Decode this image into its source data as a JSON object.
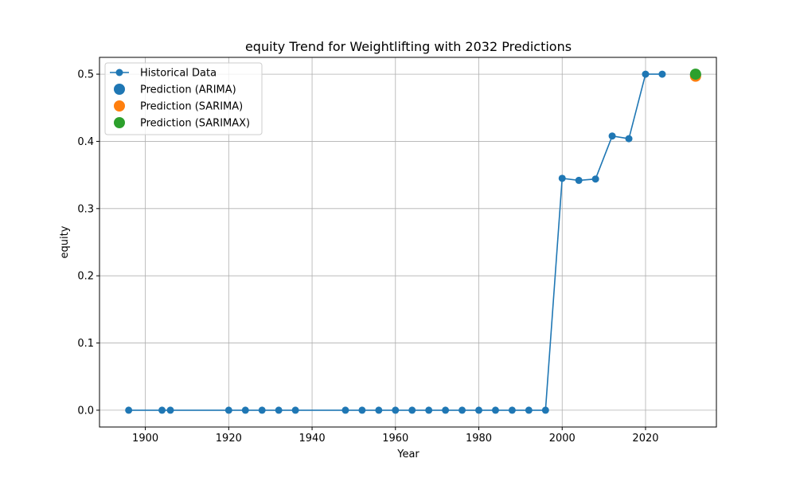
{
  "chart_data": {
    "type": "line",
    "title": "equity Trend for Weightlifting with 2032 Predictions",
    "xlabel": "Year",
    "ylabel": "equity",
    "xlim": [
      1889,
      2037
    ],
    "ylim": [
      -0.025,
      0.525
    ],
    "xticks": [
      1900,
      1920,
      1940,
      1960,
      1980,
      2000,
      2020
    ],
    "yticks": [
      0.0,
      0.1,
      0.2,
      0.3,
      0.4,
      0.5
    ],
    "ytick_labels": [
      "0.0",
      "0.1",
      "0.2",
      "0.3",
      "0.4",
      "0.5"
    ],
    "grid": true,
    "legend_position": "top-left",
    "series": [
      {
        "name": "Historical Data",
        "color": "#1f77b4",
        "style": "line-markers",
        "x": [
          1896,
          1904,
          1906,
          1920,
          1924,
          1928,
          1932,
          1936,
          1948,
          1952,
          1956,
          1960,
          1964,
          1968,
          1972,
          1976,
          1980,
          1984,
          1988,
          1992,
          1996,
          2000,
          2004,
          2008,
          2012,
          2016,
          2020,
          2024
        ],
        "y": [
          0,
          0,
          0,
          0,
          0,
          0,
          0,
          0,
          0,
          0,
          0,
          0,
          0,
          0,
          0,
          0,
          0,
          0,
          0,
          0,
          0,
          0.345,
          0.342,
          0.344,
          0.408,
          0.404,
          0.5,
          0.5
        ]
      },
      {
        "name": "Prediction (ARIMA)",
        "color": "#1f77b4",
        "style": "point",
        "x": [
          2032
        ],
        "y": [
          0.499
        ]
      },
      {
        "name": "Prediction (SARIMA)",
        "color": "#ff7f0e",
        "style": "point",
        "x": [
          2032
        ],
        "y": [
          0.497
        ]
      },
      {
        "name": "Prediction (SARIMAX)",
        "color": "#2ca02c",
        "style": "point",
        "x": [
          2032
        ],
        "y": [
          0.5
        ]
      }
    ]
  }
}
